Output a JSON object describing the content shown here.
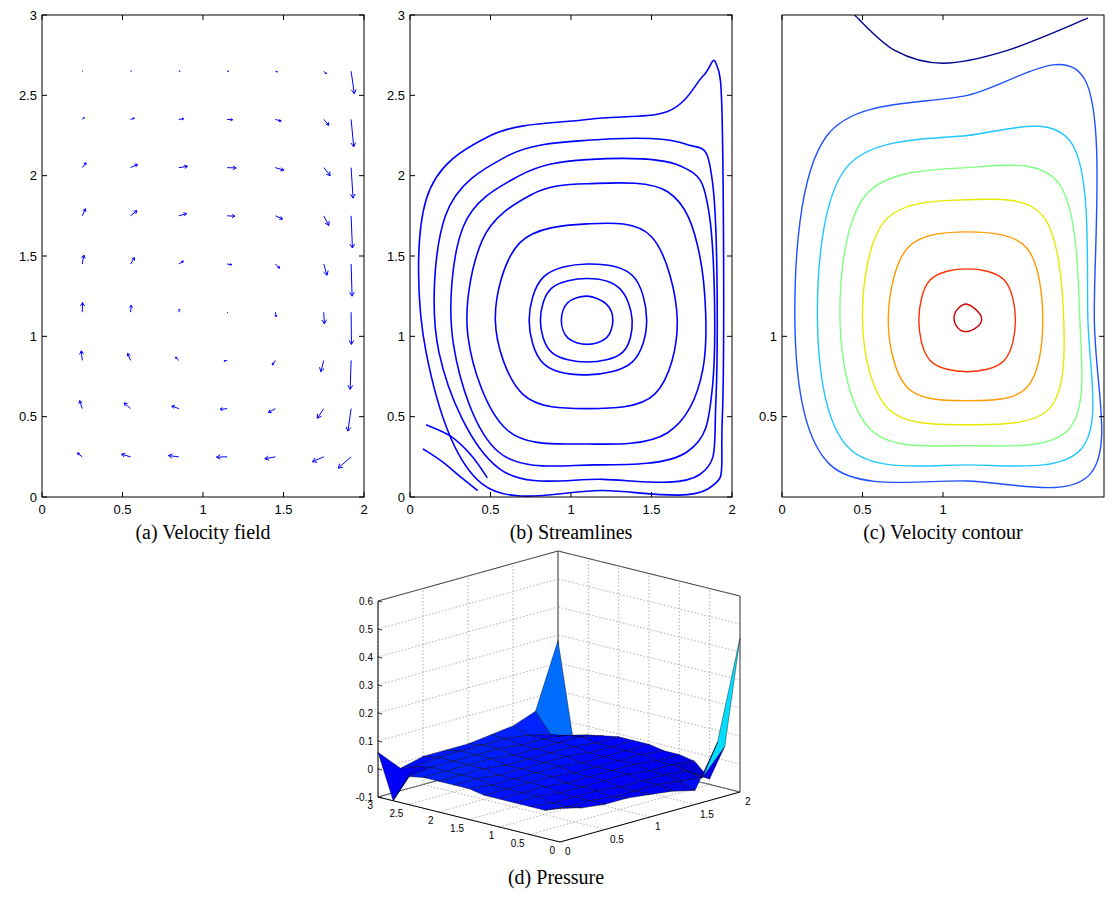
{
  "chart_data": [
    {
      "type": "quiver",
      "title": "(a) Velocity field",
      "xlim": [
        0,
        2
      ],
      "ylim": [
        0,
        3
      ],
      "xticks": [
        0,
        0.5,
        1,
        1.5,
        2
      ],
      "yticks": [
        0,
        0.5,
        1,
        1.5,
        2,
        2.5,
        3
      ],
      "color": "#0000ff",
      "x": [
        0.25,
        0.55,
        0.85,
        1.15,
        1.45,
        1.75,
        1.92
      ],
      "y": [
        0.25,
        0.55,
        0.85,
        1.15,
        1.45,
        1.75,
        2.05,
        2.35,
        2.65
      ],
      "u": [
        [
          -0.15,
          -0.28,
          -0.32,
          -0.33,
          -0.33,
          -0.35,
          -0.4
        ],
        [
          -0.08,
          -0.2,
          -0.22,
          -0.22,
          -0.22,
          -0.2,
          -0.1
        ],
        [
          -0.03,
          -0.09,
          -0.1,
          -0.1,
          -0.1,
          -0.09,
          -0.03
        ],
        [
          0.01,
          0.02,
          0.02,
          0.02,
          0.02,
          0.02,
          0.01
        ],
        [
          0.05,
          0.12,
          0.14,
          0.14,
          0.13,
          0.1,
          0.03
        ],
        [
          0.1,
          0.2,
          0.24,
          0.24,
          0.22,
          0.16,
          0.04
        ],
        [
          0.12,
          0.22,
          0.27,
          0.28,
          0.26,
          0.2,
          0.06
        ],
        [
          0.06,
          0.12,
          0.15,
          0.17,
          0.18,
          0.16,
          0.08
        ],
        [
          0.02,
          0.03,
          0.04,
          0.05,
          0.06,
          0.08,
          0.1
        ]
      ],
      "v": [
        [
          0.12,
          0.08,
          0.04,
          -0.01,
          -0.06,
          -0.15,
          -0.35
        ],
        [
          0.25,
          0.18,
          0.08,
          -0.02,
          -0.12,
          -0.3,
          -0.7
        ],
        [
          0.3,
          0.22,
          0.1,
          -0.02,
          -0.14,
          -0.35,
          -0.9
        ],
        [
          0.3,
          0.22,
          0.1,
          -0.02,
          -0.14,
          -0.36,
          -1.0
        ],
        [
          0.28,
          0.2,
          0.09,
          -0.02,
          -0.13,
          -0.35,
          -1.0
        ],
        [
          0.22,
          0.16,
          0.07,
          -0.01,
          -0.1,
          -0.3,
          -1.0
        ],
        [
          0.15,
          0.1,
          0.04,
          -0.01,
          -0.08,
          -0.25,
          -0.95
        ],
        [
          0.06,
          0.04,
          0.02,
          -0.01,
          -0.05,
          -0.18,
          -0.85
        ],
        [
          0.01,
          0.01,
          0.0,
          0.0,
          -0.02,
          -0.08,
          -0.7
        ]
      ]
    },
    {
      "type": "streamlines",
      "title": "(b) Streamlines",
      "xlim": [
        0,
        2
      ],
      "ylim": [
        0,
        3
      ],
      "xticks": [
        0,
        0.5,
        1,
        1.5,
        2
      ],
      "yticks": [
        0,
        0.5,
        1,
        1.5,
        2,
        2.5,
        3
      ],
      "color": "#0000ff",
      "series": [
        {
          "x": [
            1.1,
            1.22,
            1.26,
            1.22,
            1.1,
            0.98,
            0.94,
            0.98,
            1.1
          ],
          "y": [
            1.25,
            1.2,
            1.1,
            0.99,
            0.95,
            0.99,
            1.1,
            1.21,
            1.25
          ]
        },
        {
          "x": [
            1.1,
            1.3,
            1.38,
            1.32,
            1.1,
            0.88,
            0.81,
            0.88,
            1.1
          ],
          "y": [
            1.36,
            1.3,
            1.1,
            0.9,
            0.84,
            0.9,
            1.1,
            1.3,
            1.36
          ]
        },
        {
          "x": [
            1.1,
            1.38,
            1.47,
            1.38,
            1.1,
            0.83,
            0.74,
            0.83,
            1.1
          ],
          "y": [
            1.45,
            1.38,
            1.1,
            0.84,
            0.76,
            0.83,
            1.1,
            1.37,
            1.45
          ]
        },
        {
          "x": [
            1.1,
            1.5,
            1.66,
            1.52,
            1.1,
            0.7,
            0.53,
            0.68,
            1.1
          ],
          "y": [
            1.7,
            1.62,
            1.1,
            0.64,
            0.55,
            0.64,
            1.1,
            1.58,
            1.7
          ]
        },
        {
          "x": [
            1.1,
            1.6,
            1.8,
            1.82,
            1.6,
            1.1,
            0.6,
            0.36,
            0.45,
            0.75,
            1.1
          ],
          "y": [
            1.95,
            1.9,
            1.5,
            0.8,
            0.4,
            0.33,
            0.42,
            1.0,
            1.6,
            1.88,
            1.95
          ]
        },
        {
          "x": [
            1.1,
            1.68,
            1.86,
            1.88,
            1.72,
            1.15,
            0.55,
            0.27,
            0.33,
            0.68,
            1.1
          ],
          "y": [
            2.1,
            2.06,
            1.75,
            0.7,
            0.28,
            0.2,
            0.28,
            0.95,
            1.68,
            2.0,
            2.1
          ]
        },
        {
          "x": [
            1.1,
            1.7,
            1.88,
            1.9,
            1.8,
            1.2,
            0.55,
            0.18,
            0.22,
            0.6,
            1.1
          ],
          "y": [
            2.22,
            2.2,
            1.95,
            0.6,
            0.14,
            0.11,
            0.18,
            0.9,
            1.75,
            2.12,
            2.22
          ]
        },
        {
          "x": [
            1.1,
            1.6,
            1.82,
            1.9,
            1.94,
            1.94,
            1.85,
            1.2,
            0.45,
            0.1,
            0.1,
            0.5,
            1.1
          ],
          "y": [
            2.35,
            2.4,
            2.62,
            2.7,
            2.3,
            0.5,
            0.05,
            0.04,
            0.08,
            0.9,
            1.85,
            2.25,
            2.35
          ]
        },
        {
          "x": [
            0.08,
            0.2,
            0.32,
            0.42
          ],
          "y": [
            0.3,
            0.22,
            0.12,
            0.04
          ]
        },
        {
          "x": [
            0.1,
            0.25,
            0.38,
            0.48
          ],
          "y": [
            0.45,
            0.38,
            0.26,
            0.12
          ]
        }
      ]
    },
    {
      "type": "contour",
      "title": "(c) Velocity contour",
      "xlim": [
        0,
        2
      ],
      "ylim": [
        0,
        3
      ],
      "xticks": [
        0,
        0.5,
        1
      ],
      "yticks": [
        0.5,
        1
      ],
      "series": [
        {
          "color": "#d00000",
          "x": [
            1.15,
            1.22,
            1.24,
            1.2,
            1.13,
            1.08,
            1.07,
            1.1,
            1.15
          ],
          "y": [
            1.2,
            1.15,
            1.1,
            1.05,
            1.03,
            1.07,
            1.13,
            1.18,
            1.2
          ]
        },
        {
          "color": "#ff3000",
          "x": [
            1.15,
            1.38,
            1.45,
            1.38,
            1.15,
            0.92,
            0.85,
            0.92,
            1.15
          ],
          "y": [
            1.42,
            1.35,
            1.1,
            0.85,
            0.78,
            0.85,
            1.1,
            1.35,
            1.42
          ]
        },
        {
          "color": "#ff9900",
          "x": [
            1.15,
            1.52,
            1.62,
            1.52,
            1.15,
            0.78,
            0.66,
            0.78,
            1.15
          ],
          "y": [
            1.65,
            1.55,
            1.1,
            0.68,
            0.6,
            0.68,
            1.1,
            1.55,
            1.65
          ]
        },
        {
          "color": "#e8e800",
          "x": [
            1.15,
            1.62,
            1.75,
            1.66,
            1.15,
            0.66,
            0.5,
            0.64,
            1.15
          ],
          "y": [
            1.85,
            1.75,
            1.1,
            0.55,
            0.45,
            0.55,
            1.1,
            1.72,
            1.85
          ]
        },
        {
          "color": "#7fff80",
          "x": [
            1.15,
            1.72,
            1.85,
            1.78,
            1.15,
            0.55,
            0.36,
            0.52,
            1.15
          ],
          "y": [
            2.05,
            1.95,
            1.1,
            0.42,
            0.32,
            0.42,
            1.1,
            1.88,
            2.05
          ]
        },
        {
          "color": "#20c8ff",
          "x": [
            1.15,
            1.8,
            1.9,
            1.86,
            1.15,
            0.42,
            0.22,
            0.4,
            1.15
          ],
          "y": [
            2.25,
            2.2,
            1.1,
            0.3,
            0.2,
            0.3,
            1.1,
            2.05,
            2.25
          ]
        },
        {
          "color": "#2050ff",
          "x": [
            1.15,
            1.88,
            1.94,
            1.92,
            1.15,
            0.3,
            0.08,
            0.28,
            1.15
          ],
          "y": [
            2.5,
            2.6,
            1.1,
            0.15,
            0.1,
            0.2,
            1.1,
            2.25,
            2.5
          ]
        },
        {
          "color": "#00008f",
          "x": [
            0.45,
            0.7,
            1.0,
            1.4,
            1.9
          ],
          "y": [
            3.0,
            2.78,
            2.7,
            2.78,
            2.98
          ]
        }
      ]
    },
    {
      "type": "surface",
      "title": "(d) Pressure",
      "xlim": [
        0,
        2
      ],
      "ylim": [
        0,
        3
      ],
      "zlim": [
        -0.1,
        0.6
      ],
      "xticks": [
        0,
        0.5,
        1,
        1.5,
        2
      ],
      "yticks": [
        0,
        0.5,
        1,
        1.5,
        2,
        2.5,
        3
      ],
      "zticks": [
        -0.1,
        0,
        0.1,
        0.2,
        0.3,
        0.4,
        0.5,
        0.6
      ],
      "grid": true,
      "x": [
        0,
        0.25,
        0.5,
        0.75,
        1,
        1.25,
        1.5,
        1.75,
        2
      ],
      "y": [
        0,
        0.25,
        0.5,
        0.75,
        1,
        1.25,
        1.5,
        1.75,
        2,
        2.25,
        2.5,
        2.75,
        3
      ],
      "z": [
        [
          0.02,
          0.0,
          -0.01,
          -0.01,
          -0.02,
          -0.03,
          -0.05,
          0.1,
          0.45
        ],
        [
          0.0,
          -0.01,
          -0.01,
          -0.02,
          -0.02,
          -0.02,
          -0.03,
          -0.04,
          0.05
        ],
        [
          0.0,
          -0.01,
          -0.01,
          -0.01,
          -0.02,
          -0.02,
          -0.02,
          -0.03,
          -0.08
        ],
        [
          0.0,
          0.0,
          -0.01,
          -0.01,
          -0.01,
          -0.01,
          -0.02,
          -0.02,
          -0.03
        ],
        [
          0.0,
          0.0,
          0.0,
          -0.01,
          -0.01,
          -0.01,
          -0.01,
          -0.02,
          -0.02
        ],
        [
          0.0,
          0.0,
          0.0,
          0.0,
          -0.01,
          -0.01,
          -0.01,
          -0.01,
          -0.02
        ],
        [
          0.01,
          0.0,
          0.0,
          0.0,
          0.0,
          -0.01,
          -0.01,
          -0.01,
          -0.01
        ],
        [
          0.01,
          0.01,
          0.0,
          0.0,
          0.0,
          0.0,
          -0.01,
          -0.01,
          -0.01
        ],
        [
          0.01,
          0.01,
          0.01,
          0.0,
          0.0,
          0.0,
          0.0,
          -0.01,
          -0.01
        ],
        [
          0.01,
          0.01,
          0.01,
          0.01,
          0.0,
          0.0,
          0.0,
          0.0,
          -0.02
        ],
        [
          0.0,
          0.01,
          0.01,
          0.01,
          0.01,
          0.0,
          0.0,
          -0.01,
          -0.03
        ],
        [
          -0.1,
          0.0,
          0.01,
          0.01,
          0.01,
          0.01,
          0.0,
          -0.02,
          -0.06
        ],
        [
          0.06,
          -0.02,
          0.0,
          0.0,
          0.0,
          0.01,
          0.02,
          0.05,
          0.28
        ]
      ]
    }
  ]
}
